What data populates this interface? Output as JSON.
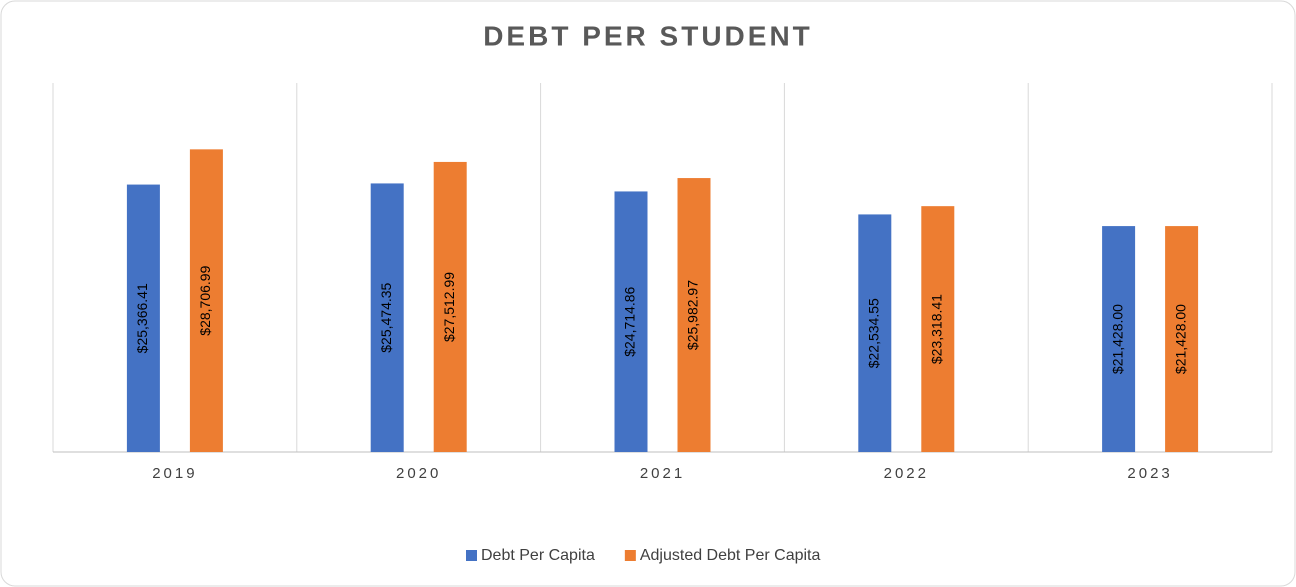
{
  "chart_data": {
    "type": "bar",
    "title": "DEBT PER STUDENT",
    "categories": [
      "2019",
      "2020",
      "2021",
      "2022",
      "2023"
    ],
    "series": [
      {
        "name": "Debt Per Capita",
        "color": "#4472c4",
        "values": [
          25366.41,
          25474.35,
          24714.86,
          22534.55,
          21428.0
        ],
        "value_labels": [
          "$25,366.41",
          "$25,474.35",
          "$24,714.86",
          "$22,534.55",
          "$21,428.00"
        ]
      },
      {
        "name": "Adjusted Debt Per Capita",
        "color": "#ed7d31",
        "values": [
          28706.99,
          27512.99,
          25982.97,
          23318.41,
          21428.0
        ],
        "value_labels": [
          "$28,706.99",
          "$27,512.99",
          "$25,982.97",
          "$23,318.41",
          "$21,428.00"
        ]
      }
    ],
    "ylim": [
      0,
      35000
    ]
  }
}
